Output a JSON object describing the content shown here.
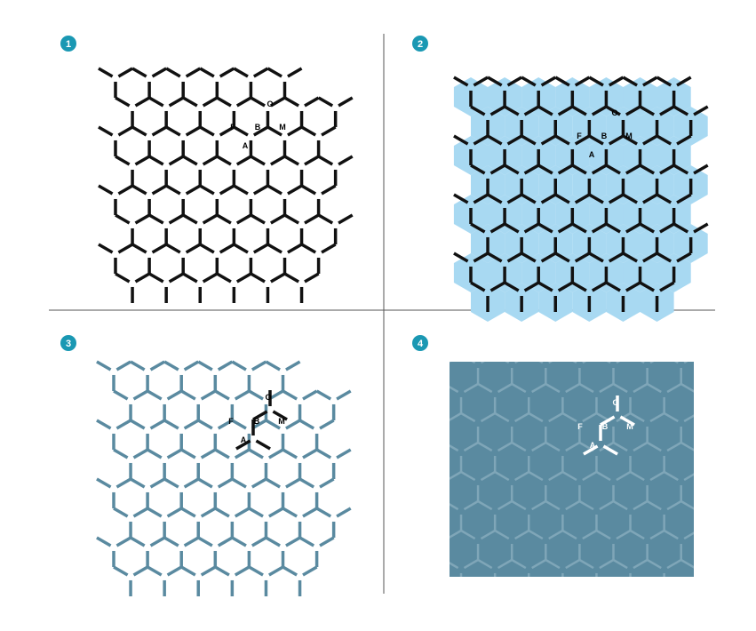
{
  "colors": {
    "black": "#111111",
    "light_blue": "#a8d9f2",
    "steel_blue": "#5a8aa0",
    "pattern_bg": "#5a8aa0",
    "pattern_line": "#7fa6b8",
    "badge": "#1a98b3",
    "white": "#ffffff",
    "divider": "#555555"
  },
  "panels": [
    {
      "number": "1",
      "style": "black-lines"
    },
    {
      "number": "2",
      "style": "black-lines-blue-cubes"
    },
    {
      "number": "3",
      "style": "steel-blue-lines"
    },
    {
      "number": "4",
      "style": "pattern-on-steel-blue"
    }
  ],
  "logo_letters": [
    "O",
    "F",
    "B",
    "M",
    "A"
  ]
}
